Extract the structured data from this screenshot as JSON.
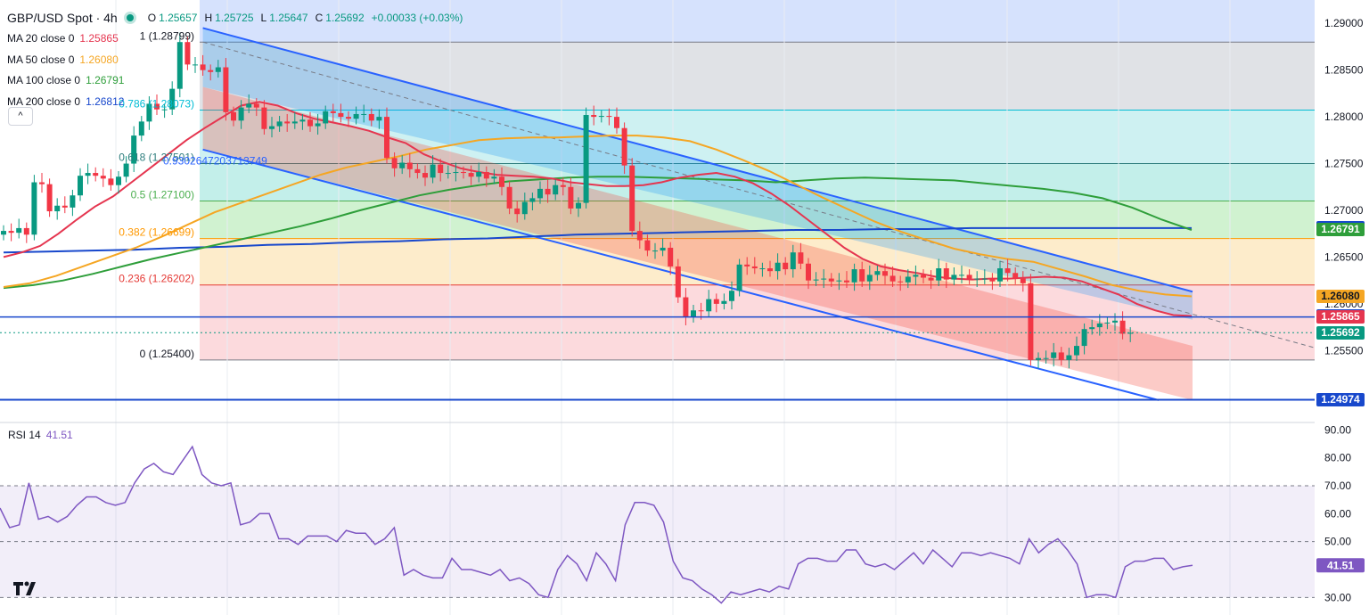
{
  "header": {
    "symbol": "GBP/USD Spot · 4h",
    "ohlc": [
      {
        "k": "O",
        "v": "1.25657"
      },
      {
        "k": "H",
        "v": "1.25725"
      },
      {
        "k": "L",
        "v": "1.25647"
      },
      {
        "k": "C",
        "v": "1.25692"
      }
    ],
    "change": "+0.00033 (+0.03%)",
    "collapse_label": "^"
  },
  "indicators": [
    {
      "label": "MA 20 close 0",
      "value": "1.25865",
      "color": "#e5354f"
    },
    {
      "label": "MA 50 close 0",
      "value": "1.26080",
      "color": "#f5a623"
    },
    {
      "label": "MA 100 close 0",
      "value": "1.26791",
      "color": "#2e9e3a"
    },
    {
      "label": "MA 200 close 0",
      "value": "1.26812",
      "color": "#1848cc"
    }
  ],
  "rsi": {
    "label": "RSI 14",
    "value": "41.51",
    "color": "#7e57c2"
  },
  "chart_data": [
    {
      "type": "candlestick",
      "title": "GBP/USD Spot · 4h",
      "ylim": [
        1.2475,
        1.2925
      ],
      "y_ticks": [
        "1.29000",
        "1.28500",
        "1.28000",
        "1.27500",
        "1.27000",
        "1.26500",
        "1.26000",
        "1.25500"
      ],
      "fibonacci": [
        {
          "ratio": "1",
          "price": "1.28799"
        },
        {
          "ratio": "0.786",
          "price": "1.28073"
        },
        {
          "ratio": "0.618",
          "price": "1.27501"
        },
        {
          "ratio": "0.5",
          "price": "1.27100"
        },
        {
          "ratio": "0.382",
          "price": "1.26699"
        },
        {
          "ratio": "0.236",
          "price": "1.26202"
        },
        {
          "ratio": "0",
          "price": "1.25400"
        }
      ],
      "channel_label": "0.9302647203713749",
      "support_level": 1.2586,
      "bottom_level": 1.24974,
      "price_tags": [
        {
          "label": "1.26812",
          "price": 1.26812,
          "bg": "#1848cc",
          "fg": "#ffffff"
        },
        {
          "label": "1.26791",
          "price": 1.26791,
          "bg": "#2e9e3a",
          "fg": "#ffffff"
        },
        {
          "label": "1.26080",
          "price": 1.2608,
          "bg": "#f5a623",
          "fg": "#131722"
        },
        {
          "label": "1.25866",
          "price": 1.25866,
          "bg": "#1848cc",
          "fg": "#ffffff"
        },
        {
          "label": "1.25865",
          "price": 1.25865,
          "bg": "#e5354f",
          "fg": "#ffffff"
        },
        {
          "label": "1.25692",
          "price": 1.25692,
          "bg": "#089981",
          "fg": "#ffffff"
        },
        {
          "label": "1.24974",
          "price": 1.24974,
          "bg": "#1848cc",
          "fg": "#ffffff"
        }
      ],
      "closes": [
        1.2678,
        1.2676,
        1.2681,
        1.2674,
        1.273,
        1.2728,
        1.2699,
        1.2705,
        1.2703,
        1.2716,
        1.2737,
        1.274,
        1.2737,
        1.2734,
        1.2727,
        1.2736,
        1.275,
        1.278,
        1.2795,
        1.2814,
        1.2808,
        1.2808,
        1.283,
        1.288,
        1.2856,
        1.2856,
        1.285,
        1.2848,
        1.2853,
        1.2805,
        1.2796,
        1.281,
        1.2814,
        1.281,
        1.2787,
        1.279,
        1.2795,
        1.2793,
        1.2795,
        1.2797,
        1.279,
        1.2793,
        1.2806,
        1.2804,
        1.28,
        1.2798,
        1.2803,
        1.2803,
        1.2796,
        1.28,
        1.2756,
        1.2745,
        1.2751,
        1.2744,
        1.274,
        1.2735,
        1.2749,
        1.274,
        1.274,
        1.2741,
        1.274,
        1.2736,
        1.2741,
        1.2734,
        1.2736,
        1.2725,
        1.2702,
        1.2696,
        1.2709,
        1.2713,
        1.2723,
        1.2717,
        1.2727,
        1.2725,
        1.2702,
        1.2708,
        1.2802,
        1.28,
        1.2801,
        1.28,
        1.2788,
        1.2748,
        1.2678,
        1.2668,
        1.2657,
        1.2657,
        1.266,
        1.264,
        1.2607,
        1.2586,
        1.2593,
        1.2592,
        1.2605,
        1.26,
        1.2603,
        1.2614,
        1.2642,
        1.264,
        1.2638,
        1.2638,
        1.2635,
        1.2644,
        1.2637,
        1.2655,
        1.2643,
        1.2625,
        1.2626,
        1.2627,
        1.2624,
        1.2625,
        1.2623,
        1.2637,
        1.2624,
        1.2631,
        1.2635,
        1.263,
        1.2624,
        1.2623,
        1.2629,
        1.2631,
        1.2628,
        1.2625,
        1.2638,
        1.2626,
        1.2631,
        1.2631,
        1.2627,
        1.2627,
        1.2627,
        1.2624,
        1.2638,
        1.2633,
        1.2627,
        1.2622,
        1.254,
        1.2542,
        1.2542,
        1.2548,
        1.254,
        1.2545,
        1.2555,
        1.2573,
        1.2575,
        1.2579,
        1.258,
        1.2582,
        1.2568,
        1.2569
      ],
      "ma20": [
        1.265,
        1.2655,
        1.2662,
        1.2675,
        1.269,
        1.2704,
        1.2715,
        1.273,
        1.2745,
        1.276,
        1.2775,
        1.2788,
        1.28,
        1.2812,
        1.2816,
        1.2812,
        1.2804,
        1.2798,
        1.2794,
        1.279,
        1.2785,
        1.2778,
        1.2772,
        1.276,
        1.2752,
        1.2745,
        1.2741,
        1.2738,
        1.2737,
        1.2736,
        1.2734,
        1.273,
        1.2728,
        1.2726,
        1.2726,
        1.2727,
        1.273,
        1.2735,
        1.2738,
        1.274,
        1.2736,
        1.2729,
        1.2718,
        1.2705,
        1.269,
        1.2675,
        1.266,
        1.2648,
        1.264,
        1.2636,
        1.2633,
        1.2629,
        1.2627,
        1.2626,
        1.2627,
        1.2627,
        1.2628,
        1.2629,
        1.2628,
        1.2624,
        1.2617,
        1.261,
        1.26,
        1.2593,
        1.2588,
        1.2587
      ],
      "ma50": [
        1.2618,
        1.2622,
        1.263,
        1.264,
        1.265,
        1.266,
        1.2672,
        1.2685,
        1.2698,
        1.2708,
        1.2718,
        1.2728,
        1.2738,
        1.2746,
        1.2752,
        1.2758,
        1.2765,
        1.277,
        1.2775,
        1.2777,
        1.2778,
        1.2778,
        1.2779,
        1.278,
        1.278,
        1.2778,
        1.2774,
        1.2765,
        1.2754,
        1.2742,
        1.2728,
        1.2714,
        1.2701,
        1.2688,
        1.2677,
        1.2668,
        1.2659,
        1.2653,
        1.2648,
        1.2645,
        1.2637,
        1.2629,
        1.262,
        1.2614,
        1.261,
        1.2608
      ],
      "ma100": [
        1.2617,
        1.262,
        1.2625,
        1.2632,
        1.264,
        1.2648,
        1.2655,
        1.2662,
        1.2669,
        1.2676,
        1.2683,
        1.2691,
        1.27,
        1.2708,
        1.2716,
        1.2722,
        1.2727,
        1.2731,
        1.2733,
        1.2735,
        1.2736,
        1.2736,
        1.2735,
        1.2734,
        1.2733,
        1.2732,
        1.273,
        1.2732,
        1.2734,
        1.2735,
        1.2734,
        1.2733,
        1.2732,
        1.2729,
        1.2726,
        1.2723,
        1.2719,
        1.2713,
        1.2703,
        1.269,
        1.2679
      ],
      "ma200": [
        1.2655,
        1.2656,
        1.2657,
        1.2658,
        1.266,
        1.2661,
        1.2663,
        1.2664,
        1.2666,
        1.2667,
        1.2669,
        1.267,
        1.2672,
        1.2674,
        1.2675,
        1.2676,
        1.2677,
        1.2678,
        1.2679,
        1.2679,
        1.268,
        1.268,
        1.2681,
        1.2681,
        1.2681,
        1.2681,
        1.2681,
        1.2681
      ]
    },
    {
      "type": "line",
      "title": "RSI 14",
      "ylim": [
        25,
        92
      ],
      "y_ticks": [
        "90.00",
        "80.00",
        "70.00",
        "60.00",
        "50.00",
        "30.00"
      ],
      "levels": [
        70,
        50,
        30
      ],
      "values": [
        62,
        55,
        56,
        71,
        58,
        59,
        57,
        59,
        63,
        66,
        66,
        64,
        63,
        64,
        71,
        76,
        78,
        75,
        74,
        79,
        84,
        74,
        71,
        70,
        71,
        56,
        57,
        60,
        60,
        51,
        51,
        49,
        52,
        52,
        52,
        50,
        54,
        53,
        53,
        49,
        51,
        55,
        38,
        40,
        38,
        37,
        37,
        44,
        40,
        40,
        39,
        38,
        40,
        36,
        37,
        35,
        31,
        30,
        40,
        45,
        42,
        36,
        46,
        42,
        36,
        56,
        64,
        64,
        63,
        57,
        43,
        37,
        36,
        33,
        31,
        28,
        32,
        31,
        32,
        33,
        32,
        34,
        33,
        42,
        44,
        44,
        43,
        43,
        47,
        47,
        42,
        41,
        42,
        40,
        43,
        46,
        42,
        47,
        44,
        41,
        46,
        46,
        45,
        46,
        45,
        44,
        42,
        51,
        46,
        49,
        51,
        47,
        42,
        30,
        31,
        31,
        30,
        41,
        43,
        43,
        44,
        44,
        40,
        41,
        41.51
      ]
    }
  ]
}
